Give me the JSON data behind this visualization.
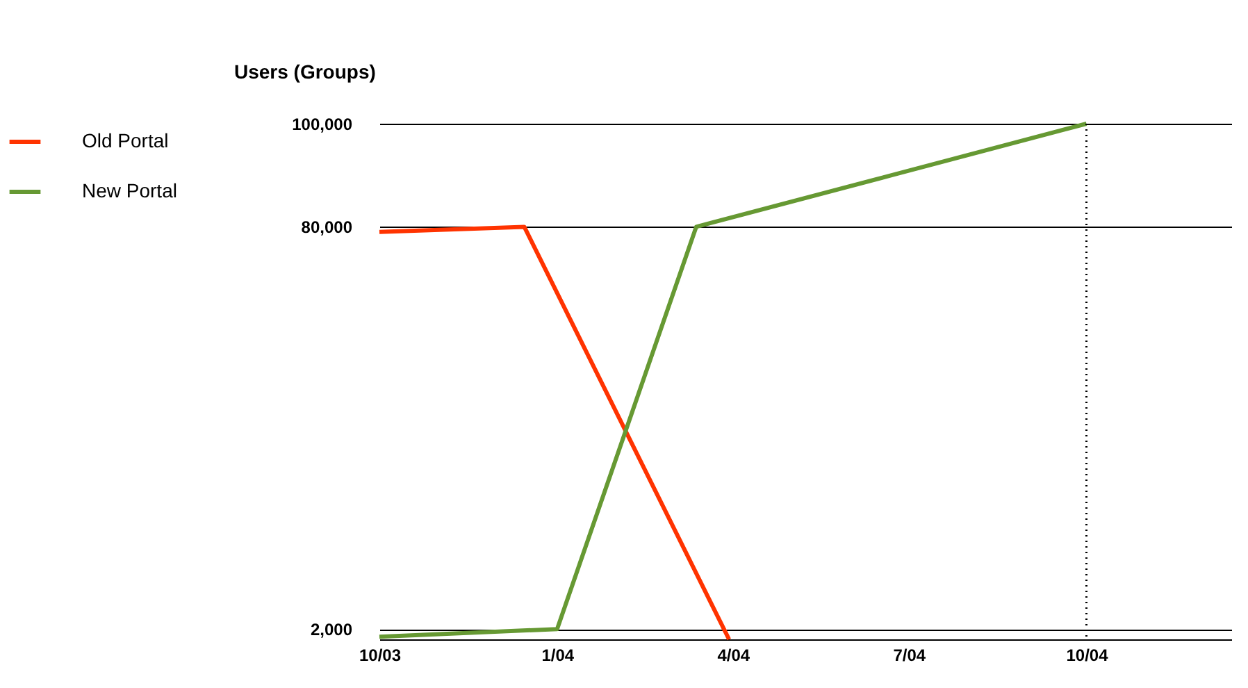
{
  "chart_data": {
    "type": "line",
    "ylabel": "Users (Groups)",
    "xlim": [
      "2003-10-01",
      "2004-12-15"
    ],
    "xticks": [
      {
        "value": "2003-10-01",
        "label": "10/03"
      },
      {
        "value": "2004-01-01",
        "label": "1/04"
      },
      {
        "value": "2004-04-01",
        "label": "4/04"
      },
      {
        "value": "2004-07-01",
        "label": "7/04"
      },
      {
        "value": "2004-10-01",
        "label": "10/04"
      }
    ],
    "ylim": [
      0,
      100000
    ],
    "yticks": [
      {
        "value": 2000,
        "label": "2,000"
      },
      {
        "value": 80000,
        "label": "80,000"
      },
      {
        "value": 100000,
        "label": "100,000"
      }
    ],
    "grid": "y",
    "legend": "left",
    "line_style": "solid",
    "marker": "none",
    "ref_lines": [
      {
        "axis": "x",
        "value": "2004-10-01",
        "line_style": "dotted",
        "color": "#000000"
      }
    ],
    "series": [
      {
        "name": "Old Portal",
        "color": "#ff3300",
        "x": [
          "2003-10-01",
          "2003-12-15",
          "2004-03-30"
        ],
        "values": [
          79000,
          80000,
          0
        ]
      },
      {
        "name": "New Portal",
        "color": "#669933",
        "x": [
          "2003-10-01",
          "2004-01-01",
          "2004-03-13",
          "2004-10-01"
        ],
        "values": [
          500,
          2000,
          80000,
          100000
        ]
      }
    ]
  }
}
